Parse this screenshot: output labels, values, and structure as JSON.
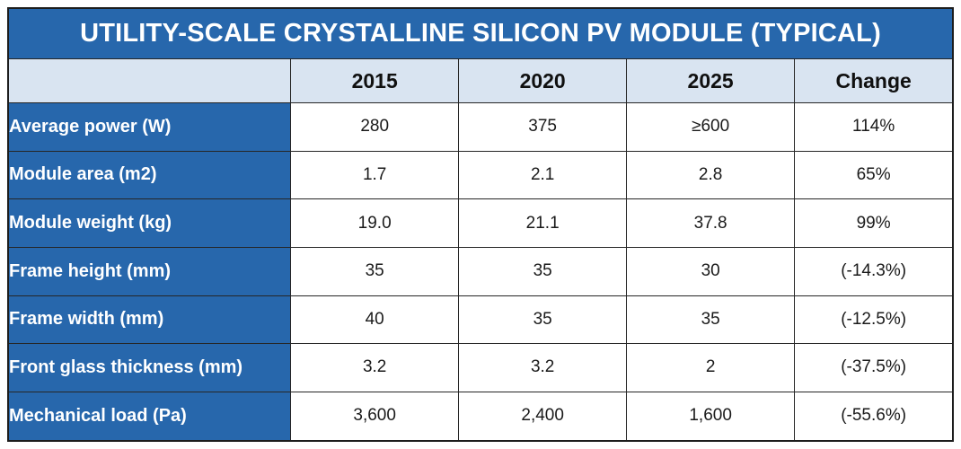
{
  "chart_data": {
    "type": "table",
    "title": "UTILITY-SCALE CRYSTALLINE SILICON PV MODULE (TYPICAL)",
    "columns": [
      "",
      "2015",
      "2020",
      "2025",
      "Change"
    ],
    "rows": [
      {
        "label": "Average power (W)",
        "values": [
          "280",
          "375",
          "≥600",
          "114%"
        ]
      },
      {
        "label": "Module area (m2)",
        "values": [
          "1.7",
          "2.1",
          "2.8",
          "65%"
        ]
      },
      {
        "label": "Module weight (kg)",
        "values": [
          "19.0",
          "21.1",
          "37.8",
          "99%"
        ]
      },
      {
        "label": "Frame height (mm)",
        "values": [
          "35",
          "35",
          "30",
          "(-14.3%)"
        ]
      },
      {
        "label": "Frame width (mm)",
        "values": [
          "40",
          "35",
          "35",
          "(-12.5%)"
        ]
      },
      {
        "label": "Front glass thickness (mm)",
        "values": [
          "3.2",
          "3.2",
          "2",
          "(-37.5%)"
        ]
      },
      {
        "label": "Mechanical load (Pa)",
        "values": [
          "3,600",
          "2,400",
          "1,600",
          "(-55.6%)"
        ]
      }
    ],
    "layout_hints": {
      "title_position": "top-banner",
      "row_labels_bold": true,
      "values_centered": true
    }
  },
  "colors": {
    "title_bg": "#2767ac",
    "label_bg": "#2767ac",
    "header_bg": "#d9e4f1",
    "cell_bg": "#ffffff",
    "border": "#1d1d1d",
    "title_text": "#ffffff",
    "header_text": "#101010",
    "label_text": "#ffffff",
    "value_text": "#1a1a1a"
  }
}
